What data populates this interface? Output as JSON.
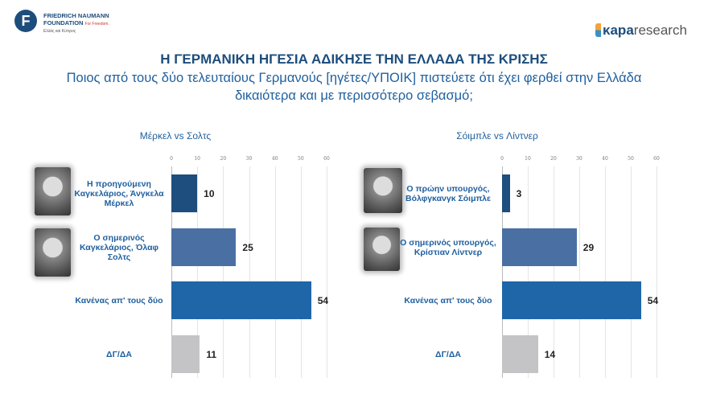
{
  "header": {
    "fnf_logo": {
      "name_line1": "FRIEDRICH NAUMANN",
      "name_line2": "FOUNDATION",
      "tagline": "For Freedom.",
      "region": "Ελλάς και Κύπρος"
    },
    "kapa_logo": {
      "bold": "κapa",
      "rest": "research"
    },
    "title": "Η ΓΕΡΜΑΝΙΚΗ ΗΓΕΣΙΑ ΑΔΙΚΗΣΕ ΤΗΝ ΕΛΛΑΔΑ ΤΗΣ ΚΡΙΣΗΣ",
    "question": "Ποιος από τους δύο τελευταίους Γερμανούς [ηγέτες/ΥΠΟΙΚ] πιστεύετε ότι έχει φερθεί στην Ελλάδα δικαιότερα και με περισσότερο σεβασμό;"
  },
  "chart_data": [
    {
      "type": "bar",
      "orientation": "horizontal",
      "title": "Μέρκελ vs Σολτς",
      "categories": [
        "Η προηγούμενη Καγκελάριος, Άνγκελα Μέρκελ",
        "Ο σημερινός Καγκελάριος, Όλαφ Σολτς",
        "Κανένας απ' τους δύο",
        "ΔΓ/ΔΑ"
      ],
      "values": [
        10,
        25,
        54,
        11
      ],
      "colors": [
        "#1d4e7e",
        "#4a70a3",
        "#1f66a8",
        "#c4c4c6"
      ],
      "xlim": [
        0,
        60
      ],
      "ticks": [
        "0",
        "10",
        "20",
        "30",
        "40",
        "50",
        "60"
      ],
      "axis_position": "top",
      "grid": true
    },
    {
      "type": "bar",
      "orientation": "horizontal",
      "title": "Σόιμπλε vs Λίντνερ",
      "categories": [
        "Ο πρώην υπουργός, Βόλφγκανγκ Σόιμπλε",
        "Ο σημερινός υπουργός, Κρίστιαν Λίντνερ",
        "Κανένας απ' τους δύο",
        "ΔΓ/ΔΑ"
      ],
      "values": [
        3,
        29,
        54,
        14
      ],
      "colors": [
        "#1d4e7e",
        "#4a70a3",
        "#1f66a8",
        "#c4c4c6"
      ],
      "xlim": [
        0,
        60
      ],
      "ticks": [
        "0",
        "10",
        "20",
        "30",
        "40",
        "50",
        "60"
      ],
      "axis_position": "top",
      "grid": true
    }
  ]
}
